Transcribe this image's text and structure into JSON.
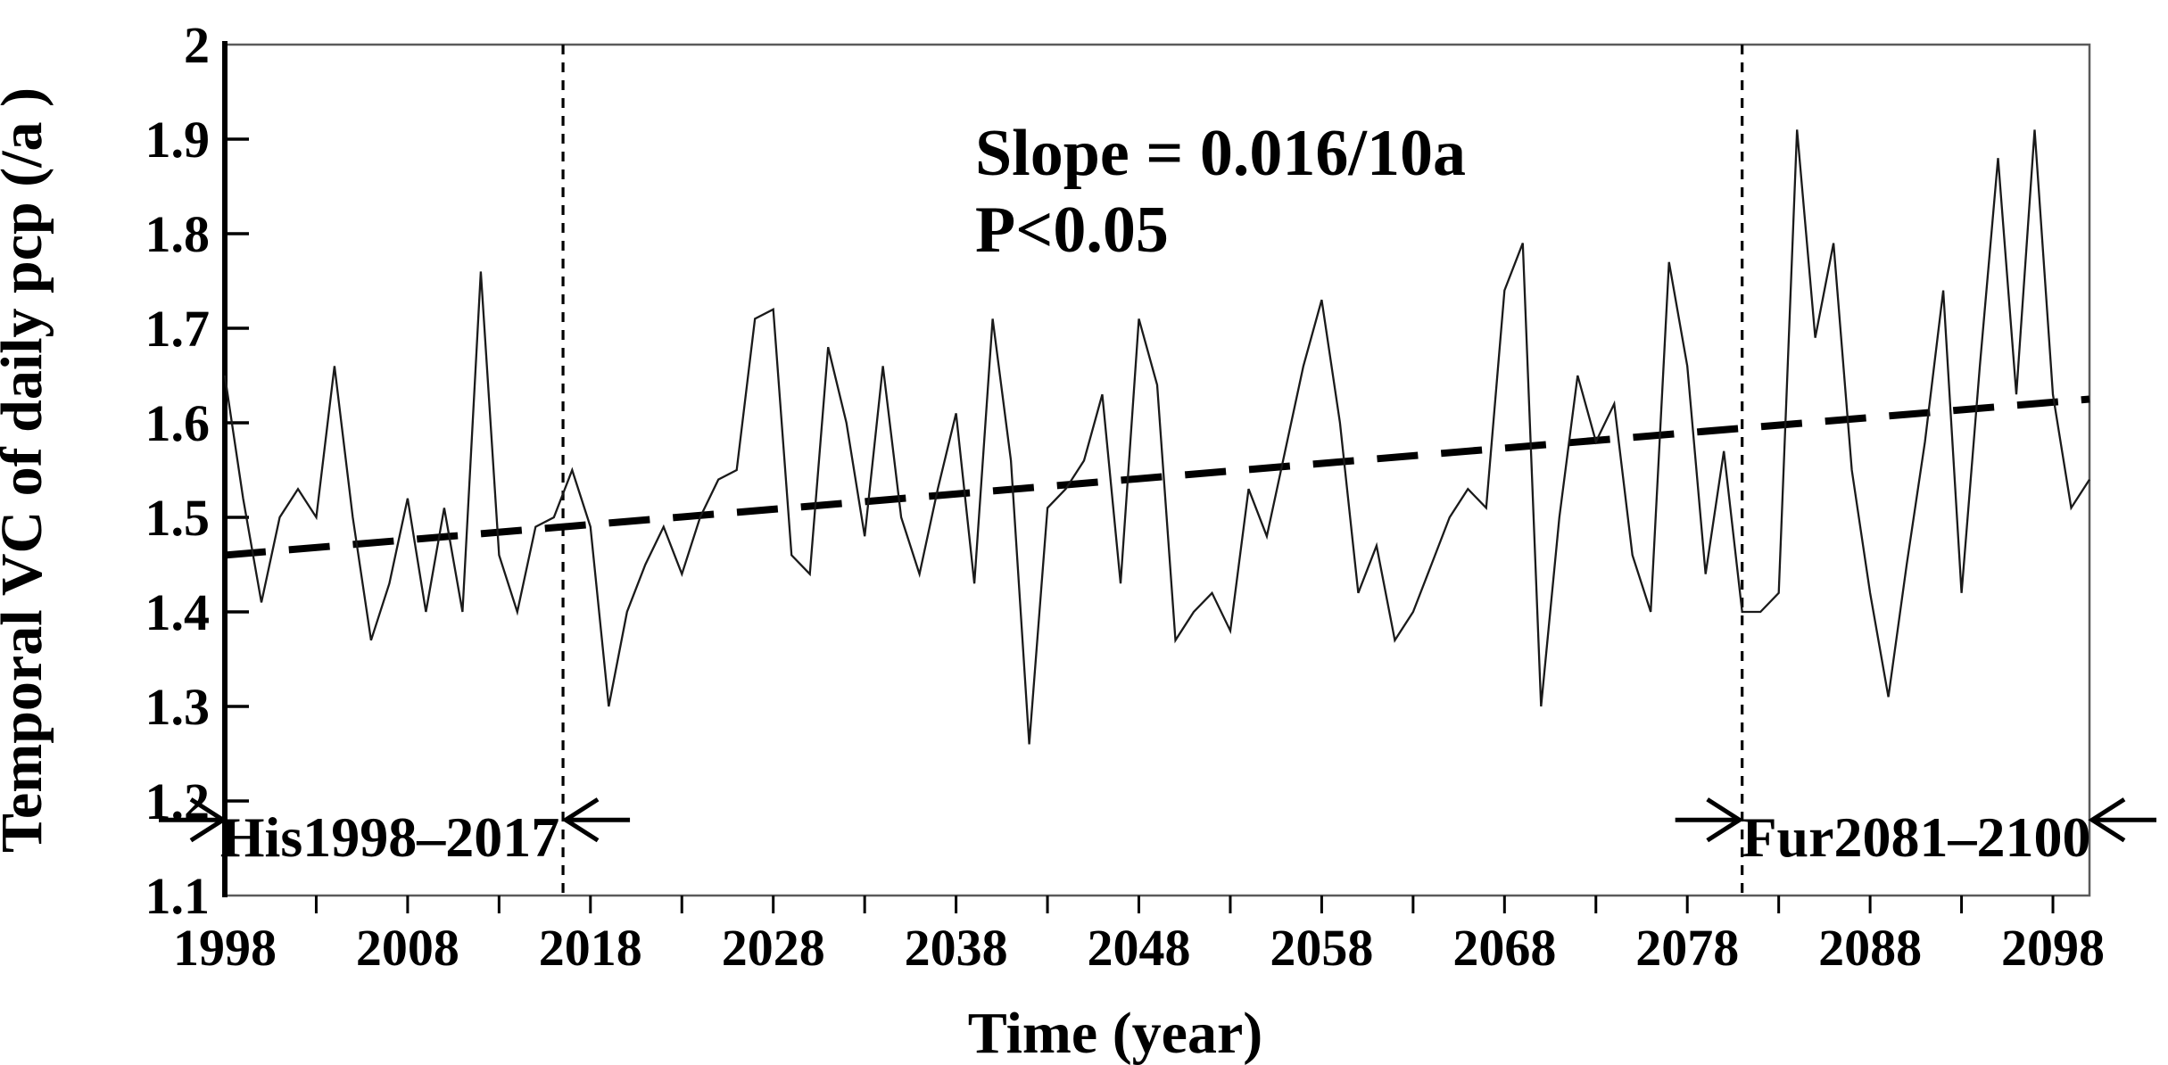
{
  "chart_data": {
    "type": "line",
    "title": "",
    "xlabel": "Time (year)",
    "ylabel": "Temporal VC of daily pcp (/a )",
    "xlim": [
      1998,
      2100
    ],
    "ylim": [
      1.1,
      2.0
    ],
    "grid": false,
    "legend_position": "none",
    "y_tick_values": [
      2,
      1.9,
      1.8,
      1.7,
      1.6,
      1.5,
      1.4,
      1.3,
      1.2,
      1.1
    ],
    "y_tick_labels": [
      "2",
      "1.9",
      "1.8",
      "1.7",
      "1.6",
      "1.5",
      "1.4",
      "1.3",
      "1.2",
      "1.1"
    ],
    "x_tick_label_years": [
      1998,
      2008,
      2018,
      2028,
      2038,
      2048,
      2058,
      2068,
      2078,
      2088,
      2098
    ],
    "x_minor_tick_start": 2003,
    "x_minor_tick_step": 5,
    "series": [
      {
        "name": "temporal-vc-annual",
        "years": [
          1998,
          1999,
          2000,
          2001,
          2002,
          2003,
          2004,
          2005,
          2006,
          2007,
          2008,
          2009,
          2010,
          2011,
          2012,
          2013,
          2014,
          2015,
          2016,
          2017,
          2018,
          2019,
          2020,
          2021,
          2022,
          2023,
          2024,
          2025,
          2026,
          2027,
          2028,
          2029,
          2030,
          2031,
          2032,
          2033,
          2034,
          2035,
          2036,
          2037,
          2038,
          2039,
          2040,
          2041,
          2042,
          2043,
          2044,
          2045,
          2046,
          2047,
          2048,
          2049,
          2050,
          2051,
          2052,
          2053,
          2054,
          2055,
          2056,
          2057,
          2058,
          2059,
          2060,
          2061,
          2062,
          2063,
          2064,
          2065,
          2066,
          2067,
          2068,
          2069,
          2070,
          2071,
          2072,
          2073,
          2074,
          2075,
          2076,
          2077,
          2078,
          2079,
          2080,
          2081,
          2082,
          2083,
          2084,
          2085,
          2086,
          2087,
          2088,
          2089,
          2090,
          2091,
          2092,
          2093,
          2094,
          2095,
          2096,
          2097,
          2098,
          2099,
          2100
        ],
        "values": [
          1.65,
          1.52,
          1.41,
          1.5,
          1.53,
          1.5,
          1.66,
          1.5,
          1.37,
          1.43,
          1.52,
          1.4,
          1.51,
          1.4,
          1.76,
          1.46,
          1.4,
          1.49,
          1.5,
          1.55,
          1.49,
          1.3,
          1.4,
          1.45,
          1.49,
          1.44,
          1.5,
          1.54,
          1.55,
          1.71,
          1.72,
          1.46,
          1.44,
          1.68,
          1.6,
          1.48,
          1.66,
          1.5,
          1.44,
          1.53,
          1.61,
          1.43,
          1.71,
          1.56,
          1.26,
          1.51,
          1.53,
          1.56,
          1.63,
          1.43,
          1.71,
          1.64,
          1.37,
          1.4,
          1.42,
          1.38,
          1.53,
          1.48,
          1.57,
          1.66,
          1.73,
          1.6,
          1.42,
          1.47,
          1.37,
          1.4,
          1.45,
          1.5,
          1.53,
          1.51,
          1.74,
          1.79,
          1.3,
          1.5,
          1.65,
          1.58,
          1.62,
          1.46,
          1.4,
          1.77,
          1.66,
          1.44,
          1.57,
          1.4,
          1.4,
          1.42,
          1.91,
          1.69,
          1.79,
          1.55,
          1.42,
          1.31,
          1.45,
          1.58,
          1.74,
          1.42,
          1.66,
          1.88,
          1.63,
          1.91,
          1.63,
          1.51,
          1.54
        ]
      }
    ],
    "trend": {
      "name": "linear-trend",
      "start_year": 1998,
      "start_value": 1.46,
      "end_year": 2100,
      "end_value": 1.625,
      "style": "dashed"
    },
    "annotations": {
      "slope_label": "Slope = 0.016/10a",
      "p_label": "P<0.05"
    },
    "regions": [
      {
        "label": "His1998–2017",
        "line_year": 2016.5,
        "label_center_year": 2007,
        "side": "left"
      },
      {
        "label": "Fur2081–2100",
        "line_year": 2081,
        "label_center_year": 2090.5,
        "side": "right"
      }
    ],
    "arrow_marker_value": 1.18
  },
  "colors": {
    "series": "#1a1a1a",
    "trend": "#000000",
    "frame": "#5a5a5a",
    "axis": "#000000",
    "background": "#ffffff"
  }
}
